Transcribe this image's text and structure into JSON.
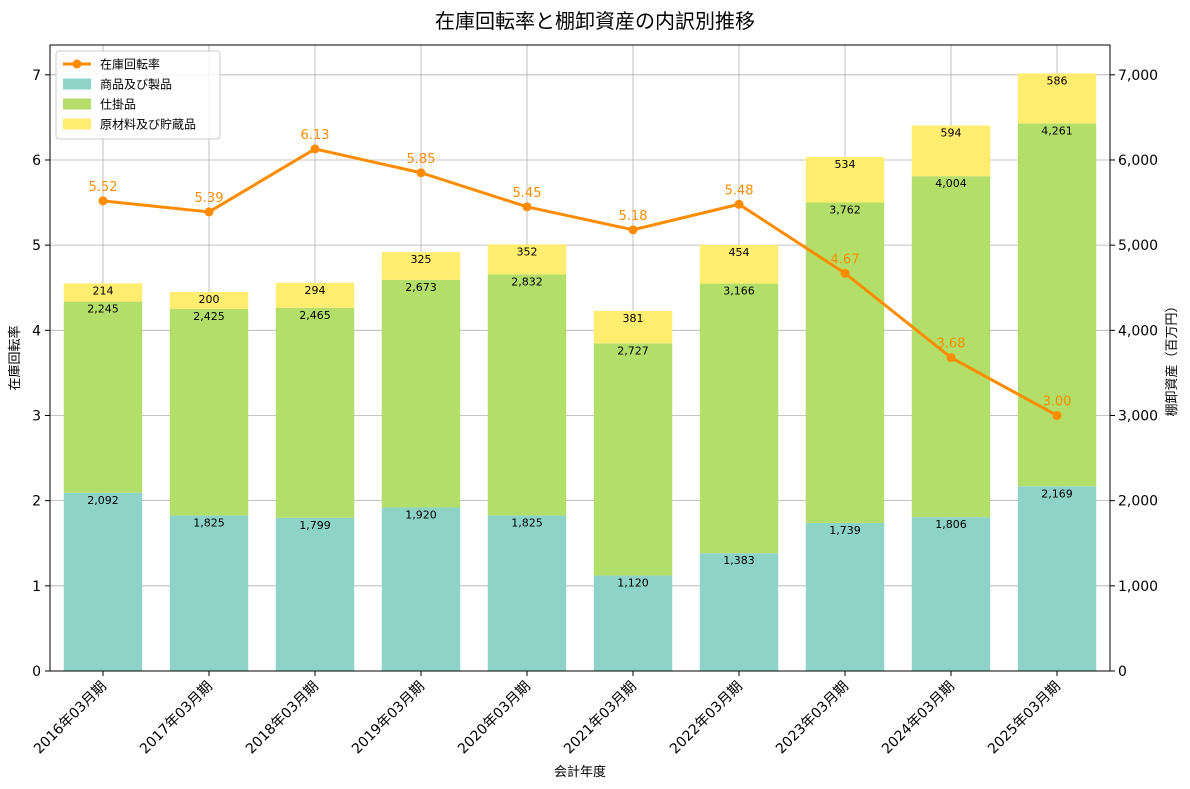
{
  "chart_data": {
    "type": "bar",
    "title": "在庫回転率と棚卸資産の内訳別推移",
    "xlabel": "会計年度",
    "ylabel": "在庫回転率",
    "y2label": "棚卸資産（百万円）",
    "categories": [
      "2016年03月期",
      "2017年03月期",
      "2018年03月期",
      "2019年03月期",
      "2020年03月期",
      "2021年03月期",
      "2022年03月期",
      "2023年03月期",
      "2024年03月期",
      "2025年03月期"
    ],
    "stack_order": [
      "商品及び製品",
      "仕掛品",
      "原材料及び貯蔵品"
    ],
    "series": [
      {
        "name": "商品及び製品",
        "type": "bar",
        "axis": "right",
        "color": "#8dd3c7",
        "values": [
          2092,
          1825,
          1799,
          1920,
          1825,
          1120,
          1383,
          1739,
          1806,
          2169
        ],
        "labels": [
          "2,092",
          "1,825",
          "1,799",
          "1,920",
          "1,825",
          "1,120",
          "1,383",
          "1,739",
          "1,806",
          "2,169"
        ]
      },
      {
        "name": "仕掛品",
        "type": "bar",
        "axis": "right",
        "color": "#b3de69",
        "values": [
          2245,
          2425,
          2465,
          2673,
          2832,
          2727,
          3166,
          3762,
          4004,
          4261
        ],
        "labels": [
          "2,245",
          "2,425",
          "2,465",
          "2,673",
          "2,832",
          "2,727",
          "3,166",
          "3,762",
          "4,004",
          "4,261"
        ]
      },
      {
        "name": "原材料及び貯蔵品",
        "type": "bar",
        "axis": "right",
        "color": "#ffed6f",
        "values": [
          214,
          200,
          294,
          325,
          352,
          381,
          454,
          534,
          594,
          586
        ],
        "labels": [
          "214",
          "200",
          "294",
          "325",
          "352",
          "381",
          "454",
          "534",
          "594",
          "586"
        ]
      },
      {
        "name": "在庫回転率",
        "type": "line",
        "axis": "left",
        "color": "#ff8c00",
        "values": [
          5.52,
          5.39,
          6.13,
          5.85,
          5.45,
          5.18,
          5.48,
          4.67,
          3.68,
          3.0
        ],
        "labels": [
          "5.52",
          "5.39",
          "6.13",
          "5.85",
          "5.45",
          "5.18",
          "5.48",
          "4.67",
          "3.68",
          "3.00"
        ]
      }
    ],
    "legend_order": [
      "在庫回転率",
      "商品及び製品",
      "仕掛品",
      "原材料及び貯蔵品"
    ],
    "ylim": [
      0,
      7.35
    ],
    "y2lim": [
      0,
      7350
    ],
    "yticks": [
      0,
      1,
      2,
      3,
      4,
      5,
      6,
      7
    ],
    "ytick_labels": [
      "0",
      "1",
      "2",
      "3",
      "4",
      "5",
      "6",
      "7"
    ],
    "y2ticks": [
      0,
      1000,
      2000,
      3000,
      4000,
      5000,
      6000,
      7000
    ],
    "y2tick_labels": [
      "0",
      "1,000",
      "2,000",
      "3,000",
      "4,000",
      "5,000",
      "6,000",
      "7,000"
    ],
    "grid": true,
    "legend_position": "top-left"
  }
}
